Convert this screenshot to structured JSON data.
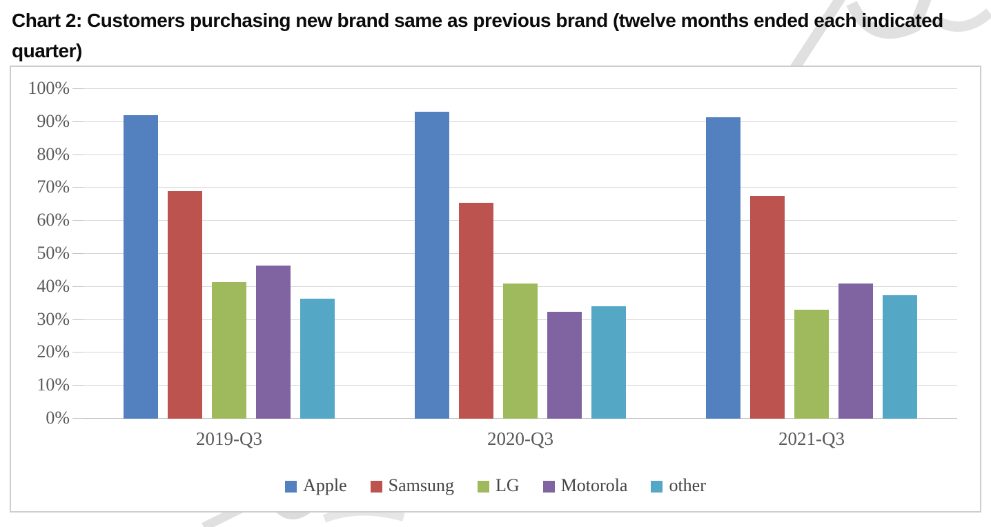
{
  "header": {
    "title_lines": [
      "Chart 2: Customers purchasing new brand same as previous brand (twelve months ended each indicated",
      "quarter)"
    ]
  },
  "chart_data": {
    "type": "bar",
    "title": "Chart 2: Customers purchasing new brand same as previous brand (twelve months ended each indicated quarter)",
    "categories": [
      "2019-Q3",
      "2020-Q3",
      "2021-Q3"
    ],
    "series": [
      {
        "name": "Apple",
        "color": "#5380BE",
        "values": [
          92,
          93,
          91.5
        ]
      },
      {
        "name": "Samsung",
        "color": "#BC534F",
        "values": [
          69,
          65.5,
          67.5
        ]
      },
      {
        "name": "LG",
        "color": "#9FBA5D",
        "values": [
          41.5,
          41,
          33
        ]
      },
      {
        "name": "Motorola",
        "color": "#8064A2",
        "values": [
          46.5,
          32.5,
          41
        ]
      },
      {
        "name": "other",
        "color": "#55A7C6",
        "values": [
          36.5,
          34,
          37.5
        ]
      }
    ],
    "xlabel": "",
    "ylabel": "",
    "ylim": [
      0,
      100
    ],
    "ytick_step": 10,
    "ytick_suffix": "%",
    "grid": true,
    "legend_position": "bottom"
  },
  "style": {
    "grid_color": "#d8d8d8",
    "axis_line_color": "#bdbdbd",
    "axis_text_color": "#595959",
    "legend_text_color": "#454545",
    "chart_border_color": "#cdcdcd",
    "watermark_color": "#e0e0e0"
  }
}
